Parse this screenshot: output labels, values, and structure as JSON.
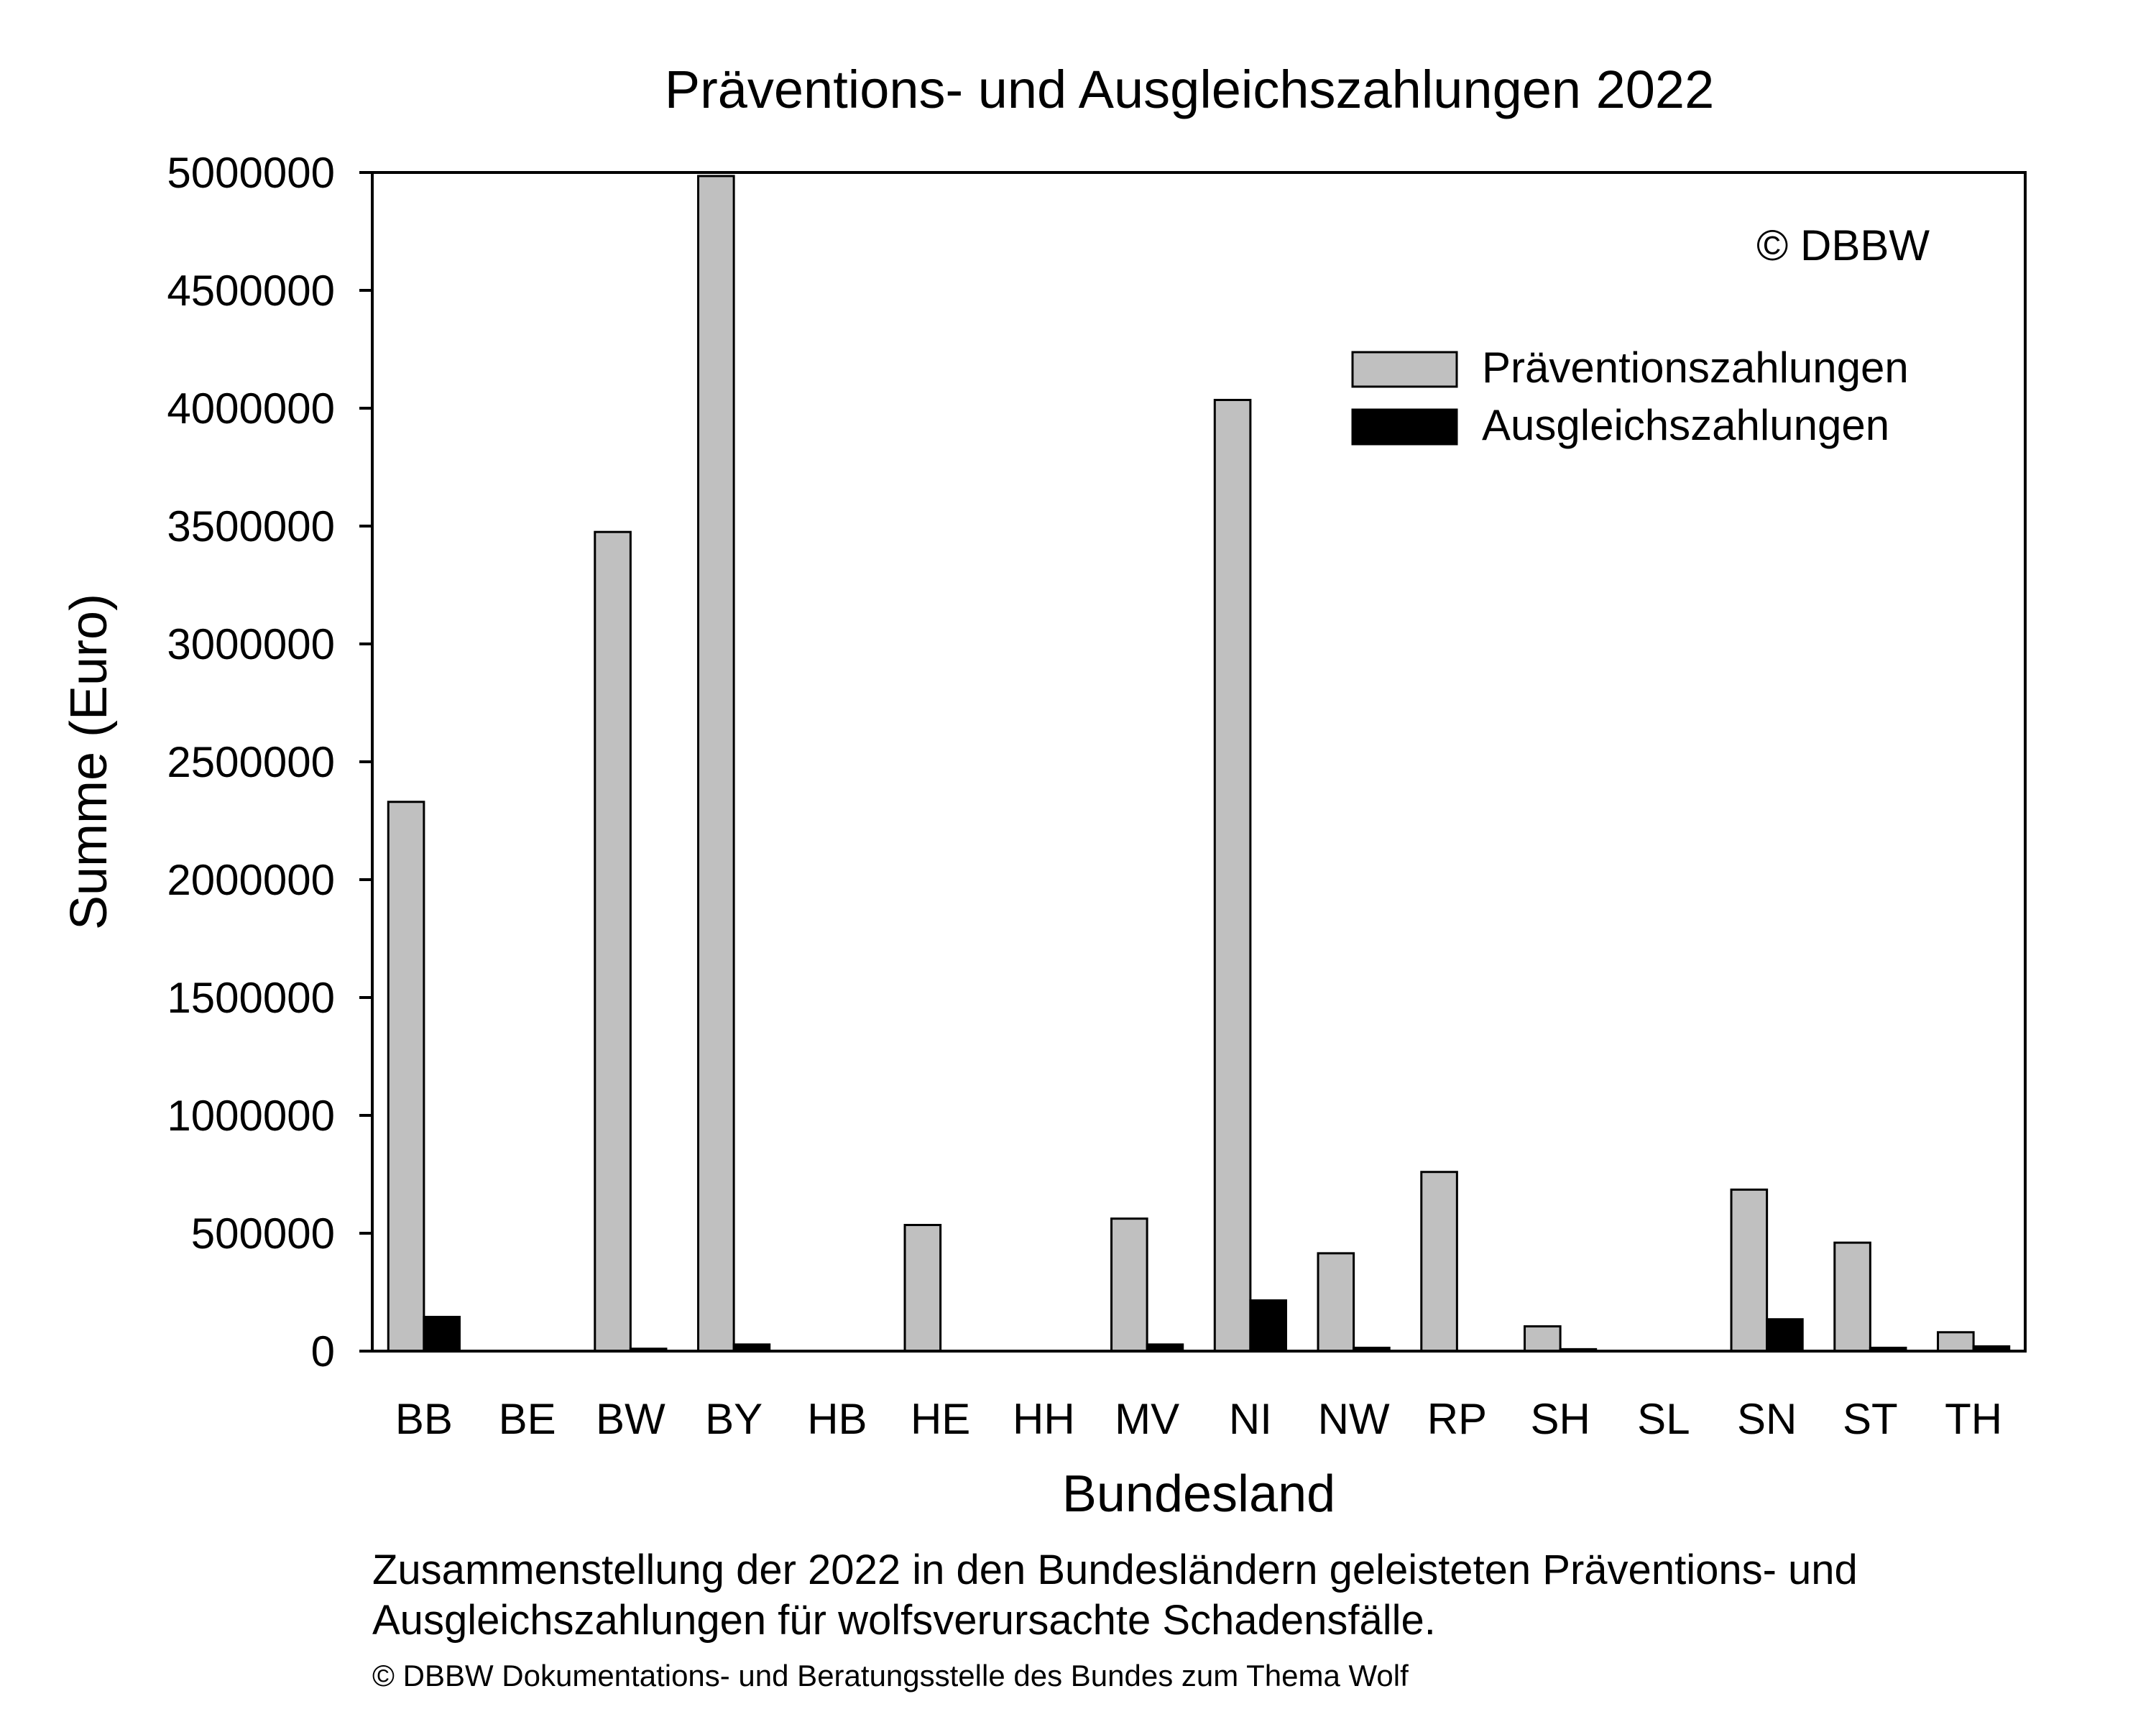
{
  "chart_data": {
    "type": "bar",
    "title": "Präventions- und Ausgleichszahlungen 2022",
    "xlabel": "Bundesland",
    "ylabel": "Summe (Euro)",
    "ylim": [
      0,
      5000000
    ],
    "yticks": [
      "0",
      "500000",
      "1000000",
      "1500000",
      "2000000",
      "2500000",
      "3000000",
      "3500000",
      "4000000",
      "4500000",
      "5000000"
    ],
    "categories": [
      "BB",
      "BE",
      "BW",
      "BY",
      "HB",
      "HE",
      "HH",
      "MV",
      "NI",
      "NW",
      "RP",
      "SH",
      "SL",
      "SN",
      "ST",
      "TH"
    ],
    "series": [
      {
        "name": "Präventionszahlungen",
        "color": "#c0c0c0",
        "values": [
          2330000,
          0,
          3475000,
          4985000,
          0,
          535000,
          0,
          562000,
          4035000,
          415000,
          760000,
          105000,
          0,
          685000,
          460000,
          80000
        ]
      },
      {
        "name": "Ausgleichszahlungen",
        "color": "#000000",
        "values": [
          145000,
          0,
          10000,
          28000,
          0,
          0,
          0,
          28000,
          215000,
          14000,
          0,
          8000,
          0,
          135000,
          14000,
          20000
        ]
      }
    ],
    "grid": false,
    "legend_position": "top-right",
    "annotation": "© DBBW"
  },
  "caption": "Zusammenstellung der 2022 in den Bundesländern geleisteten Präventions- und Ausgleichszahlungen für wolfsverursachte Schadensfälle.",
  "credit": "© DBBW Dokumentations- und Beratungsstelle des Bundes zum Thema Wolf"
}
